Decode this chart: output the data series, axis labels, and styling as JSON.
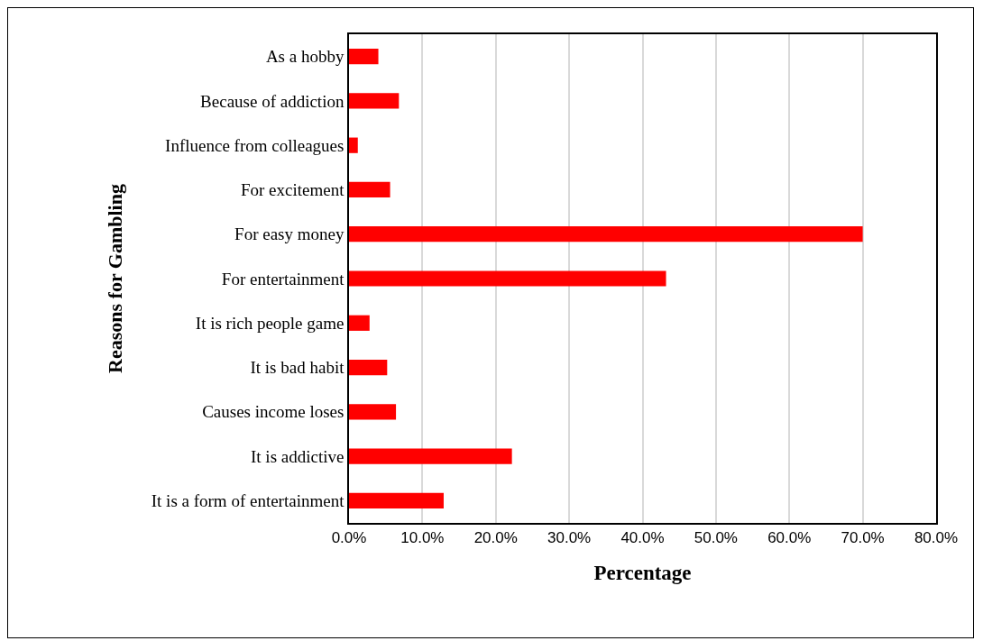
{
  "chart_data": {
    "type": "bar",
    "orientation": "horizontal",
    "xlabel": "Percentage",
    "ylabel": "Reasons for Gambling",
    "categories": [
      "As a hobby",
      "Because of addiction",
      "Influence from colleagues",
      "For excitement",
      "For easy money",
      "For entertainment",
      "It is rich people game",
      "It is bad habit",
      "Causes income loses",
      "It is addictive",
      "It is a form of entertainment"
    ],
    "values": [
      4.0,
      6.8,
      1.2,
      5.6,
      70.0,
      43.2,
      2.8,
      5.2,
      6.4,
      22.2,
      12.9
    ],
    "color": "#ff0000",
    "xlim": [
      0,
      80
    ],
    "xticks": [
      {
        "value": 0,
        "label": "0.0%"
      },
      {
        "value": 10,
        "label": "10.0%"
      },
      {
        "value": 20,
        "label": "20.0%"
      },
      {
        "value": 30,
        "label": "30.0%"
      },
      {
        "value": 40,
        "label": "40.0%"
      },
      {
        "value": 50,
        "label": "50.0%"
      },
      {
        "value": 60,
        "label": "60.0%"
      },
      {
        "value": 70,
        "label": "70.0%"
      },
      {
        "value": 80,
        "label": "80.0%"
      }
    ],
    "grid": "x"
  }
}
